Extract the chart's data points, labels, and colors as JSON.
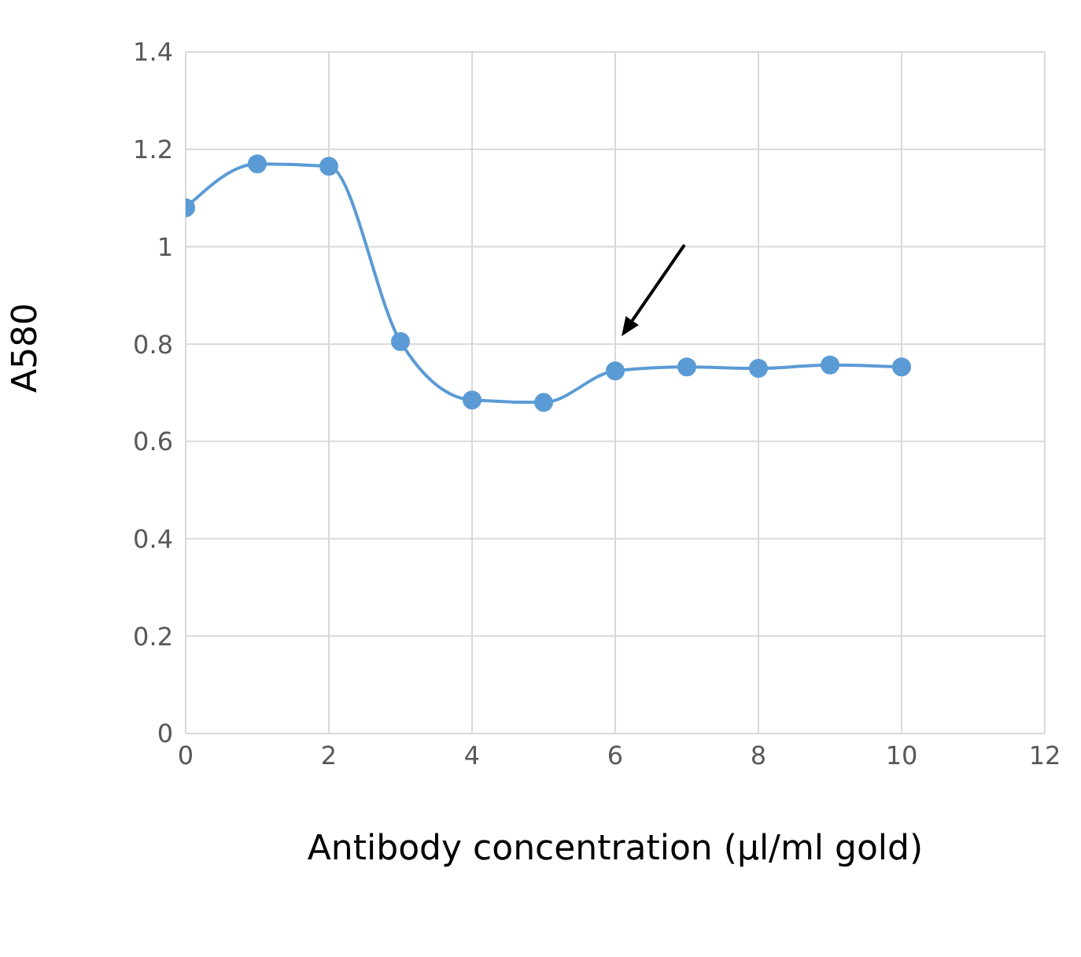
{
  "chart_data": {
    "type": "line",
    "xlabel": "Antibody concentration (µl/ml gold)",
    "ylabel": "A580",
    "x": [
      0,
      1,
      2,
      3,
      4,
      5,
      6,
      7,
      8,
      9,
      10
    ],
    "series": [
      {
        "color": "#5b9bd5",
        "values": [
          1.08,
          1.17,
          1.165,
          0.805,
          0.685,
          0.68,
          0.745,
          0.753,
          0.75,
          0.757,
          0.753
        ]
      }
    ],
    "xlim": [
      0,
      12
    ],
    "xticks": [
      0,
      2,
      4,
      6,
      8,
      10,
      12
    ],
    "ylim": [
      0,
      1.4
    ],
    "yticks": [
      0,
      0.2,
      0.4,
      0.6,
      0.8,
      1,
      1.2,
      1.4
    ],
    "grid": true,
    "marker": "circle"
  }
}
